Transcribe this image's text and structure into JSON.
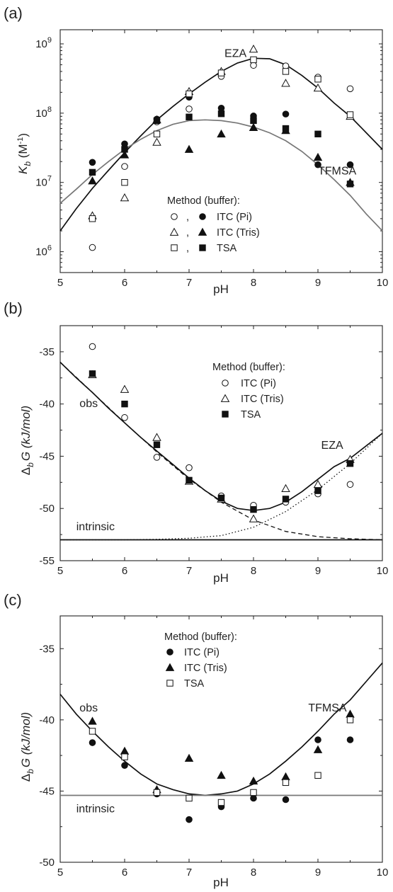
{
  "chart_data": [
    {
      "panel": "(a)",
      "type": "scatter",
      "ylabel": "K_b (M⁻¹)",
      "ylabel_main": "K",
      "ylabel_sub": "b",
      "ylabel_unit": " (M",
      "ylabel_sup": "-1",
      "ylabel_close": ")",
      "xlabel": "pH",
      "xlim": [
        5,
        10
      ],
      "ylim": [
        500000,
        1600000000
      ],
      "yscale": "log",
      "xticks": [
        "5",
        "6",
        "7",
        "8",
        "9",
        "10"
      ],
      "yticks": [
        {
          "value": 1000000,
          "base": "10",
          "exp": "6"
        },
        {
          "value": 10000000,
          "base": "10",
          "exp": "7"
        },
        {
          "value": 100000000,
          "base": "10",
          "exp": "8"
        },
        {
          "value": 1000000000,
          "base": "10",
          "exp": "9"
        }
      ],
      "annotations": [
        {
          "text": "EZA",
          "x": 7.55,
          "y": 650000000
        },
        {
          "text": "TFMSA",
          "x": 9.0,
          "y": 13000000
        }
      ],
      "legend": {
        "title": "Method (buffer):",
        "position": "bottom-center",
        "entries": [
          {
            "open_marker": "circle",
            "filled_marker": "circle",
            "separator": ",",
            "label": "ITC (Pi)"
          },
          {
            "open_marker": "triangle",
            "filled_marker": "triangle",
            "separator": ",",
            "label": "ITC (Tris)"
          },
          {
            "open_marker": "square",
            "filled_marker": "square",
            "separator": ",",
            "label": "TSA"
          }
        ]
      },
      "curves": [
        {
          "name": "EZA",
          "color": "#111111",
          "dash": "solid",
          "x": [
            5,
            5.25,
            5.5,
            5.75,
            6,
            6.25,
            6.5,
            6.75,
            7,
            7.25,
            7.5,
            7.75,
            8,
            8.25,
            8.5,
            8.75,
            9,
            9.25,
            9.5,
            9.75,
            10
          ],
          "y": [
            2000000,
            4200000,
            8200000,
            15000000,
            27000000,
            47000000,
            80000000,
            125000000,
            190000000,
            280000000,
            400000000,
            530000000,
            620000000,
            610000000,
            500000000,
            350000000,
            230000000,
            140000000,
            90000000,
            52000000,
            30000000
          ]
        },
        {
          "name": "TFMSA",
          "color": "#777777",
          "dash": "solid",
          "x": [
            5,
            5.25,
            5.5,
            5.75,
            6,
            6.25,
            6.5,
            6.75,
            7,
            7.25,
            7.5,
            7.75,
            8,
            8.25,
            8.5,
            8.75,
            9,
            9.25,
            9.5,
            9.75,
            10
          ],
          "y": [
            5000000,
            8000000,
            13000000,
            20000000,
            30000000,
            42000000,
            56000000,
            69000000,
            78000000,
            80000000,
            78000000,
            72000000,
            63000000,
            52000000,
            40000000,
            28000000,
            18000000,
            11000000,
            6500000,
            3500000,
            2000000
          ]
        }
      ],
      "points": [
        {
          "marker": "circle",
          "fill": "open",
          "x": [
            5.5,
            6,
            6.5,
            7,
            7.5,
            8,
            8.5,
            9,
            9.5
          ],
          "y": [
            1150000,
            17000000,
            75000000,
            115000000,
            340000000,
            490000000,
            480000000,
            330000000,
            225000000
          ]
        },
        {
          "marker": "circle",
          "fill": "filled",
          "x": [
            5.5,
            6,
            6.5,
            7,
            7.5,
            8,
            8.5,
            9,
            9.5
          ],
          "y": [
            19500000,
            36000000,
            82000000,
            170000000,
            118000000,
            91000000,
            97000000,
            18000000,
            18000000
          ]
        },
        {
          "marker": "triangle",
          "fill": "open",
          "x": [
            5.5,
            6,
            6.5,
            7,
            7.5,
            8,
            8.5,
            9,
            9.5
          ],
          "y": [
            3300000,
            6000000,
            38000000,
            205000000,
            400000000,
            840000000,
            270000000,
            230000000,
            90000000
          ]
        },
        {
          "marker": "triangle",
          "fill": "filled",
          "x": [
            5.5,
            6,
            6.5,
            7,
            7.5,
            8,
            8.5,
            9,
            9.5
          ],
          "y": [
            10500000,
            25000000,
            80000000,
            30000000,
            50000000,
            62000000,
            56000000,
            23000000,
            10000000
          ]
        },
        {
          "marker": "square",
          "fill": "open",
          "x": [
            5.5,
            6,
            6.5,
            7,
            7.5,
            8,
            8.5,
            9,
            9.5
          ],
          "y": [
            3000000,
            10000000,
            50000000,
            190000000,
            380000000,
            590000000,
            400000000,
            310000000,
            95000000
          ]
        },
        {
          "marker": "square",
          "fill": "filled",
          "x": [
            5.5,
            6,
            6.5,
            7,
            7.5,
            8,
            8.5,
            9,
            9.5
          ],
          "y": [
            14000000,
            30000000,
            78000000,
            88000000,
            98000000,
            78000000,
            60000000,
            50000000,
            9500000
          ]
        }
      ]
    },
    {
      "panel": "(b)",
      "type": "scatter",
      "ylabel": "Δ_b G (kJ/mol)",
      "ylabel_main": "Δ",
      "ylabel_sub": "b",
      "ylabel_rest": "G (kJ/mol)",
      "xlabel": "pH",
      "xlim": [
        5,
        10
      ],
      "ylim": [
        -55,
        -32.5
      ],
      "xticks": [
        "5",
        "6",
        "7",
        "8",
        "9",
        "10"
      ],
      "yticks": [
        "-35",
        "-40",
        "-45",
        "-50",
        "-55"
      ],
      "annotations": [
        {
          "text": "obs",
          "x": 5.3,
          "y": -40.3
        },
        {
          "text": "EZA",
          "x": 9.05,
          "y": -44.3
        },
        {
          "text": "intrinsic",
          "x": 5.25,
          "y": -52.1
        }
      ],
      "legend": {
        "title": "Method (buffer):",
        "position": "top-right",
        "entries": [
          {
            "marker": "circle",
            "fill": "open",
            "label": "ITC (Pi)"
          },
          {
            "marker": "triangle",
            "fill": "open",
            "label": "ITC (Tris)"
          },
          {
            "marker": "square",
            "fill": "filled",
            "label": "TSA"
          }
        ]
      },
      "curves": [
        {
          "name": "obs",
          "color": "#111111",
          "dash": "solid",
          "x": [
            5,
            5.25,
            5.5,
            5.75,
            6,
            6.25,
            6.5,
            6.75,
            7,
            7.25,
            7.5,
            7.75,
            8,
            8.25,
            8.5,
            8.75,
            9,
            9.25,
            9.5,
            9.75,
            10
          ],
          "y": [
            -36,
            -37.5,
            -38.9,
            -40.4,
            -41.8,
            -43.2,
            -44.5,
            -45.8,
            -47.1,
            -48.3,
            -49.3,
            -50.0,
            -50.2,
            -50.0,
            -49.4,
            -48.4,
            -47.2,
            -46.0,
            -45.2,
            -44.0,
            -42.8
          ]
        },
        {
          "name": "dashed",
          "color": "#111111",
          "dash": "dashed",
          "x": [
            5,
            5.5,
            6,
            6.5,
            7,
            7.5,
            8,
            8.5,
            9,
            9.5,
            10
          ],
          "y": [
            -36,
            -38.9,
            -41.8,
            -44.6,
            -47.2,
            -49.4,
            -51.1,
            -52.2,
            -52.7,
            -52.9,
            -53.0
          ]
        },
        {
          "name": "dotted",
          "color": "#111111",
          "dash": "dotted",
          "x": [
            5,
            5.5,
            6,
            6.5,
            7,
            7.5,
            8,
            8.5,
            9,
            9.5,
            10
          ],
          "y": [
            -53.0,
            -53.0,
            -53.0,
            -52.95,
            -52.85,
            -52.6,
            -51.8,
            -50.3,
            -48.2,
            -45.7,
            -42.8
          ]
        },
        {
          "name": "intrinsic",
          "color": "#111111",
          "dash": "solid",
          "x": [
            5,
            10
          ],
          "y": [
            -53.0,
            -53.0
          ]
        }
      ],
      "points": [
        {
          "marker": "circle",
          "fill": "open",
          "x": [
            5.5,
            6,
            6.5,
            7,
            7.5,
            8,
            8.5,
            9,
            9.5
          ],
          "y": [
            -34.5,
            -41.3,
            -45.1,
            -46.1,
            -48.8,
            -49.7,
            -49.4,
            -48.6,
            -47.7
          ]
        },
        {
          "marker": "triangle",
          "fill": "open",
          "x": [
            5.5,
            6,
            6.5,
            7,
            7.5,
            8,
            8.5,
            9,
            9.5
          ],
          "y": [
            -37.2,
            -38.6,
            -43.2,
            -47.4,
            -49.1,
            -51.0,
            -48.1,
            -47.7,
            -45.3
          ]
        },
        {
          "marker": "square",
          "fill": "filled",
          "x": [
            5.5,
            6,
            6.5,
            7,
            7.5,
            8,
            8.5,
            9,
            9.5
          ],
          "y": [
            -37.1,
            -40.0,
            -43.9,
            -47.3,
            -49.0,
            -50.1,
            -49.1,
            -48.3,
            -45.7
          ]
        }
      ]
    },
    {
      "panel": "(c)",
      "type": "scatter",
      "ylabel": "Δ_b G (kJ/mol)",
      "ylabel_main": "Δ",
      "ylabel_sub": "b",
      "ylabel_rest": "G (kJ/mol)",
      "xlabel": "pH",
      "xlim": [
        5,
        10
      ],
      "ylim": [
        -50,
        -32.7
      ],
      "xticks": [
        "5",
        "6",
        "7",
        "8",
        "9",
        "10"
      ],
      "yticks": [
        "-35",
        "-40",
        "-45",
        "-50"
      ],
      "annotations": [
        {
          "text": "obs",
          "x": 5.3,
          "y": -39.4
        },
        {
          "text": "TFMSA",
          "x": 8.85,
          "y": -39.4
        },
        {
          "text": "intrinsic",
          "x": 5.25,
          "y": -46.5
        }
      ],
      "legend": {
        "title": "Method (buffer):",
        "position": "top-center",
        "entries": [
          {
            "marker": "circle",
            "fill": "filled",
            "label": "ITC (Pi)"
          },
          {
            "marker": "triangle",
            "fill": "filled",
            "label": "ITC (Tris)"
          },
          {
            "marker": "square",
            "fill": "open",
            "label": "TSA"
          }
        ]
      },
      "curves": [
        {
          "name": "obs",
          "color": "#111111",
          "dash": "solid",
          "x": [
            5,
            5.25,
            5.5,
            5.75,
            6,
            6.25,
            6.5,
            6.75,
            7,
            7.25,
            7.5,
            7.75,
            8,
            8.25,
            8.5,
            8.75,
            9,
            9.25,
            9.5,
            9.75,
            10
          ],
          "y": [
            -38.2,
            -39.6,
            -40.8,
            -41.9,
            -42.9,
            -43.8,
            -44.5,
            -44.9,
            -45.2,
            -45.3,
            -45.2,
            -45.0,
            -44.5,
            -43.8,
            -42.9,
            -41.9,
            -40.8,
            -39.6,
            -38.6,
            -37.3,
            -36.0
          ]
        },
        {
          "name": "intrinsic",
          "color": "#777777",
          "dash": "solid",
          "x": [
            5,
            10
          ],
          "y": [
            -45.3,
            -45.3
          ]
        }
      ],
      "points": [
        {
          "marker": "circle",
          "fill": "filled",
          "x": [
            5.5,
            6,
            6.5,
            7,
            7.5,
            8,
            8.5,
            9,
            9.5
          ],
          "y": [
            -41.6,
            -43.2,
            -45.2,
            -47.0,
            -46.1,
            -45.5,
            -45.6,
            -41.4,
            -41.4
          ]
        },
        {
          "marker": "triangle",
          "fill": "filled",
          "x": [
            5.5,
            6,
            6.5,
            7,
            7.5,
            8,
            8.5,
            9,
            9.5
          ],
          "y": [
            -40.1,
            -42.2,
            -44.9,
            -42.7,
            -43.9,
            -44.3,
            -44.0,
            -42.1,
            -39.6
          ]
        },
        {
          "marker": "square",
          "fill": "open",
          "x": [
            5.5,
            6,
            6.5,
            7,
            7.5,
            8,
            8.5,
            9,
            9.5
          ],
          "y": [
            -40.8,
            -42.6,
            -45.1,
            -45.5,
            -45.8,
            -45.1,
            -44.4,
            -43.9,
            -40.0
          ]
        }
      ]
    }
  ]
}
